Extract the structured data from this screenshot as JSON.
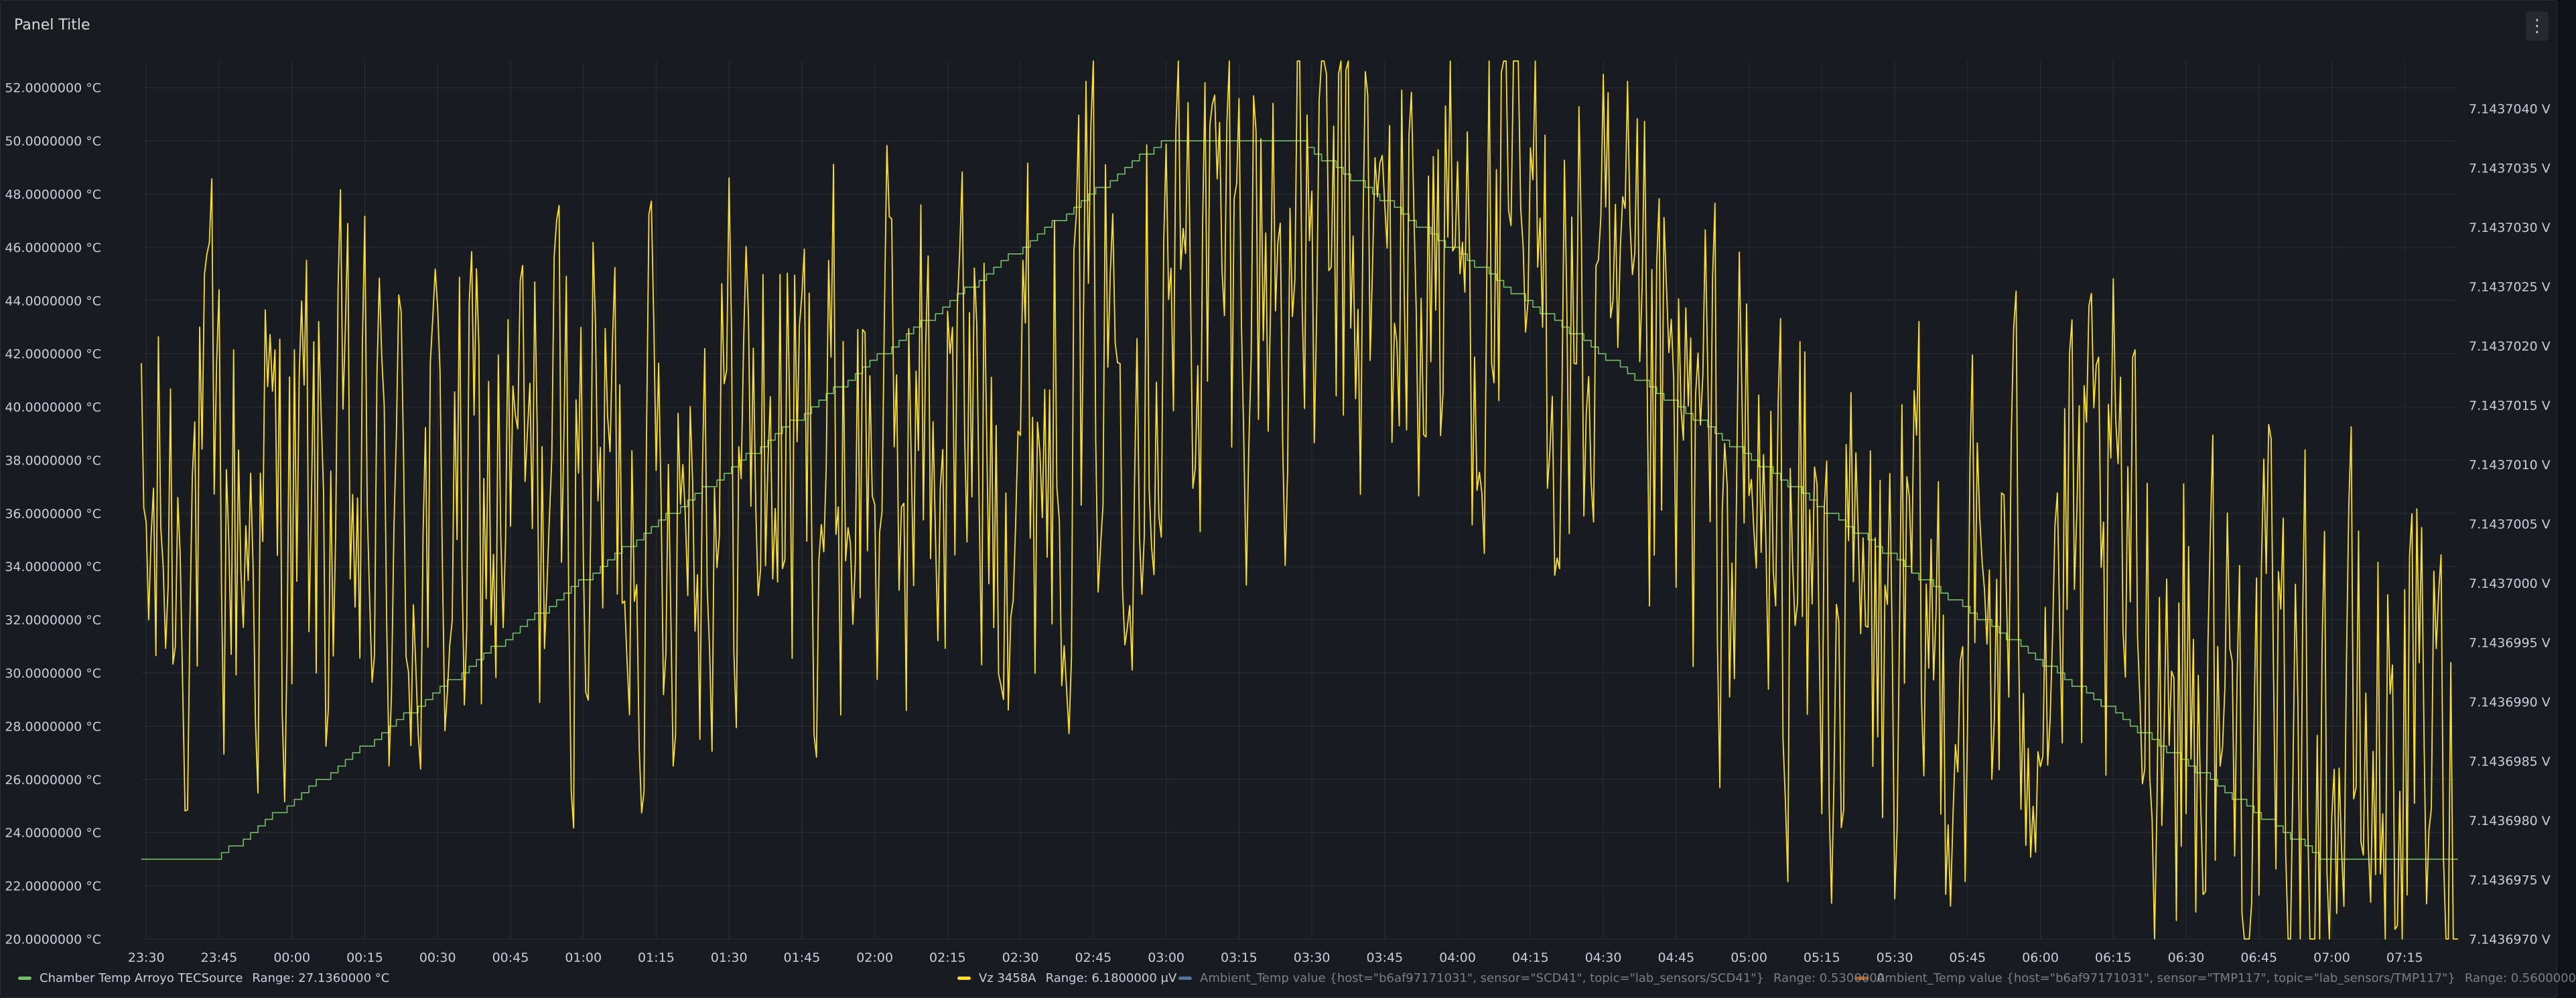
{
  "panel": {
    "title": "Panel Title",
    "menu_icon": "vertical-ellipsis-icon",
    "menu_glyph": "⋮"
  },
  "legend": [
    {
      "name": "Chamber Temp Arroyo TECSource",
      "range": "Range: 27.1360000 °C",
      "color": "#73bf69",
      "active": true
    },
    {
      "name": "Vz 3458A",
      "range": "Range: 6.1800000 μV",
      "color": "#fade2a",
      "active": true
    },
    {
      "name": "Ambient_Temp value {host=\"b6af97171031\", sensor=\"SCD41\", topic=\"lab_sensors/SCD41\"}",
      "range": "Range: 0.5300000",
      "color": "#8ab8ff",
      "active": false
    },
    {
      "name": "Ambient_Temp value {host=\"b6af97171031\", sensor=\"TMP117\", topic=\"lab_sensors/TMP117\"}",
      "range": "Range: 0.5600000",
      "color": "#ff9830",
      "active": false
    }
  ],
  "chart_data": {
    "type": "line",
    "x_ticks": [
      "23:30",
      "23:45",
      "00:00",
      "00:15",
      "00:30",
      "00:45",
      "01:00",
      "01:15",
      "01:30",
      "01:45",
      "02:00",
      "02:15",
      "02:30",
      "02:45",
      "03:00",
      "03:15",
      "03:30",
      "03:45",
      "04:00",
      "04:15",
      "04:30",
      "04:45",
      "05:00",
      "05:15",
      "05:30",
      "05:45",
      "06:00",
      "06:15",
      "06:30",
      "06:45",
      "07:00",
      "07:15"
    ],
    "x_tick_minutes": [
      0,
      15,
      30,
      45,
      60,
      75,
      90,
      105,
      120,
      135,
      150,
      165,
      180,
      195,
      210,
      225,
      240,
      255,
      270,
      285,
      300,
      315,
      330,
      345,
      360,
      375,
      390,
      405,
      420,
      435,
      450,
      465
    ],
    "x_range_minutes": [
      -1,
      476
    ],
    "y_left": {
      "ticks": [
        "20.0000000 °C",
        "22.0000000 °C",
        "24.0000000 °C",
        "26.0000000 °C",
        "28.0000000 °C",
        "30.0000000 °C",
        "32.0000000 °C",
        "34.0000000 °C",
        "36.0000000 °C",
        "38.0000000 °C",
        "40.0000000 °C",
        "42.0000000 °C",
        "44.0000000 °C",
        "46.0000000 °C",
        "48.0000000 °C",
        "50.0000000 °C",
        "52.0000000 °C"
      ],
      "tick_values": [
        20,
        22,
        24,
        26,
        28,
        30,
        32,
        34,
        36,
        38,
        40,
        42,
        44,
        46,
        48,
        50,
        52
      ],
      "range": [
        20,
        53
      ]
    },
    "y_right": {
      "ticks": [
        "7.1436970 V",
        "7.1436975 V",
        "7.1436980 V",
        "7.1436985 V",
        "7.1436990 V",
        "7.1436995 V",
        "7.1437000 V",
        "7.1437005 V",
        "7.1437010 V",
        "7.1437015 V",
        "7.1437020 V",
        "7.1437025 V",
        "7.1437030 V",
        "7.1437035 V",
        "7.1437040 V"
      ],
      "tick_values": [
        7.143697,
        7.1436975,
        7.143698,
        7.1436985,
        7.143699,
        7.1436995,
        7.1437,
        7.1437005,
        7.143701,
        7.1437015,
        7.143702,
        7.1437025,
        7.143703,
        7.1437035,
        7.143704
      ],
      "range": [
        7.143697,
        7.1437044
      ]
    },
    "grid": true,
    "legend_position": "bottom",
    "series": [
      {
        "name": "Chamber Temp Arroyo TECSource",
        "axis": "left",
        "color": "#73bf69",
        "step": true,
        "points": [
          [
            -1,
            23.0
          ],
          [
            14,
            23.0
          ],
          [
            209,
            50.0
          ],
          [
            237,
            50.0
          ],
          [
            448,
            23.0
          ],
          [
            476,
            23.0
          ]
        ]
      },
      {
        "name": "Vz 3458A",
        "axis": "right",
        "color": "#fade2a",
        "noise_amplitude": 2.2e-06,
        "points": [
          [
            -1,
            7.1436999
          ],
          [
            5,
            7.1437005
          ],
          [
            10,
            7.1437006
          ],
          [
            20,
            7.1437005
          ],
          [
            30,
            7.1437006
          ],
          [
            45,
            7.1437004
          ],
          [
            60,
            7.1437004
          ],
          [
            75,
            7.1437007
          ],
          [
            90,
            7.1437008
          ],
          [
            105,
            7.143701
          ],
          [
            120,
            7.1437012
          ],
          [
            135,
            7.1437011
          ],
          [
            150,
            7.1437011
          ],
          [
            165,
            7.1437013
          ],
          [
            180,
            7.1437013
          ],
          [
            195,
            7.143702
          ],
          [
            210,
            7.1437025
          ],
          [
            225,
            7.1437027
          ],
          [
            240,
            7.1437027
          ],
          [
            255,
            7.1437026
          ],
          [
            270,
            7.1437027
          ],
          [
            285,
            7.1437025
          ],
          [
            300,
            7.1437017
          ],
          [
            315,
            7.143701
          ],
          [
            330,
            7.1437005
          ],
          [
            345,
            7.1436997
          ],
          [
            360,
            7.1436993
          ],
          [
            375,
            7.1436995
          ],
          [
            390,
            7.1436999
          ],
          [
            405,
            7.1437
          ],
          [
            420,
            7.1436992
          ],
          [
            435,
            7.1436987
          ],
          [
            450,
            7.1436984
          ],
          [
            465,
            7.1436986
          ],
          [
            470,
            7.1436988
          ],
          [
            473,
            7.1436982
          ],
          [
            476,
            7.1436975
          ]
        ]
      }
    ]
  }
}
